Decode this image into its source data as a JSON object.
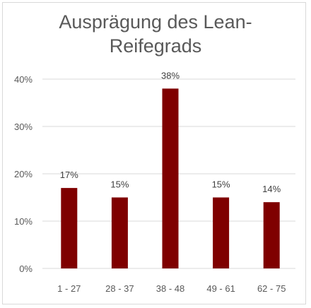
{
  "chart_data": {
    "type": "bar",
    "title_line1": "Ausprägung des Lean-",
    "title_line2": "Reifegrads",
    "categories": [
      "1 - 27",
      "28 - 37",
      "38 - 48",
      "49 - 61",
      "62 - 75"
    ],
    "values": [
      17,
      15,
      38,
      15,
      14
    ],
    "data_labels": [
      "17%",
      "15%",
      "38%",
      "15%",
      "14%"
    ],
    "y_ticks": [
      0,
      10,
      20,
      30,
      40
    ],
    "y_tick_labels": [
      "0%",
      "10%",
      "20%",
      "30%",
      "40%"
    ],
    "ylim": [
      0,
      40
    ],
    "xlabel": "",
    "ylabel": "",
    "grid": true,
    "legend": "none",
    "colors": {
      "bar": "#7f0000",
      "grid": "#d9d9d9",
      "text": "#595959"
    }
  }
}
